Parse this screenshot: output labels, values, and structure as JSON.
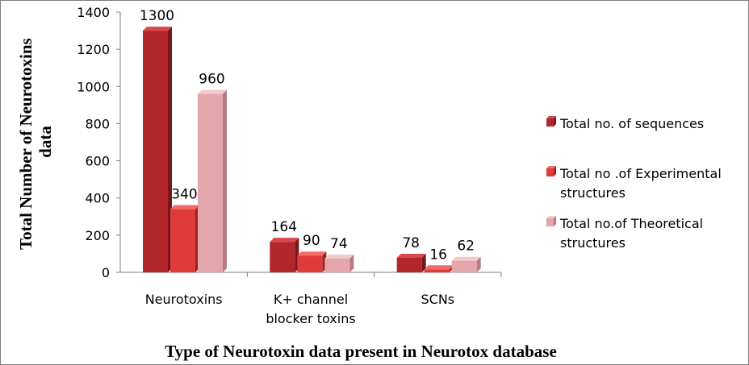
{
  "chart_data": {
    "type": "bar",
    "title": "",
    "xlabel": "Type of Neurotoxin data present in Neurotox database",
    "ylabel_lines": [
      "Total Number of Neurotoxins",
      "data"
    ],
    "categories": [
      [
        "Neurotoxins"
      ],
      [
        "K+ channel",
        "blocker toxins"
      ],
      [
        "SCNs"
      ]
    ],
    "series": [
      {
        "name_lines": [
          "Total no. of sequences"
        ],
        "values": [
          1300,
          164,
          78
        ],
        "colors": {
          "front": "#b3262b",
          "side": "#7a1519",
          "top": "#d8494c"
        }
      },
      {
        "name_lines": [
          "Total no .of Experimental",
          "structures"
        ],
        "values": [
          340,
          90,
          16
        ],
        "colors": {
          "front": "#e03b3b",
          "side": "#9e2222",
          "top": "#f26a6a"
        }
      },
      {
        "name_lines": [
          "Total no.of Theoretical",
          "structures"
        ],
        "values": [
          960,
          74,
          62
        ],
        "colors": {
          "front": "#e3a7ab",
          "side": "#b67b80",
          "top": "#f1cbcd"
        }
      }
    ],
    "yticks": [
      0,
      200,
      400,
      600,
      800,
      1000,
      1200,
      1400
    ],
    "ylim": [
      0,
      1400
    ],
    "data_labels": true,
    "legend_position": "right",
    "grid": false
  }
}
